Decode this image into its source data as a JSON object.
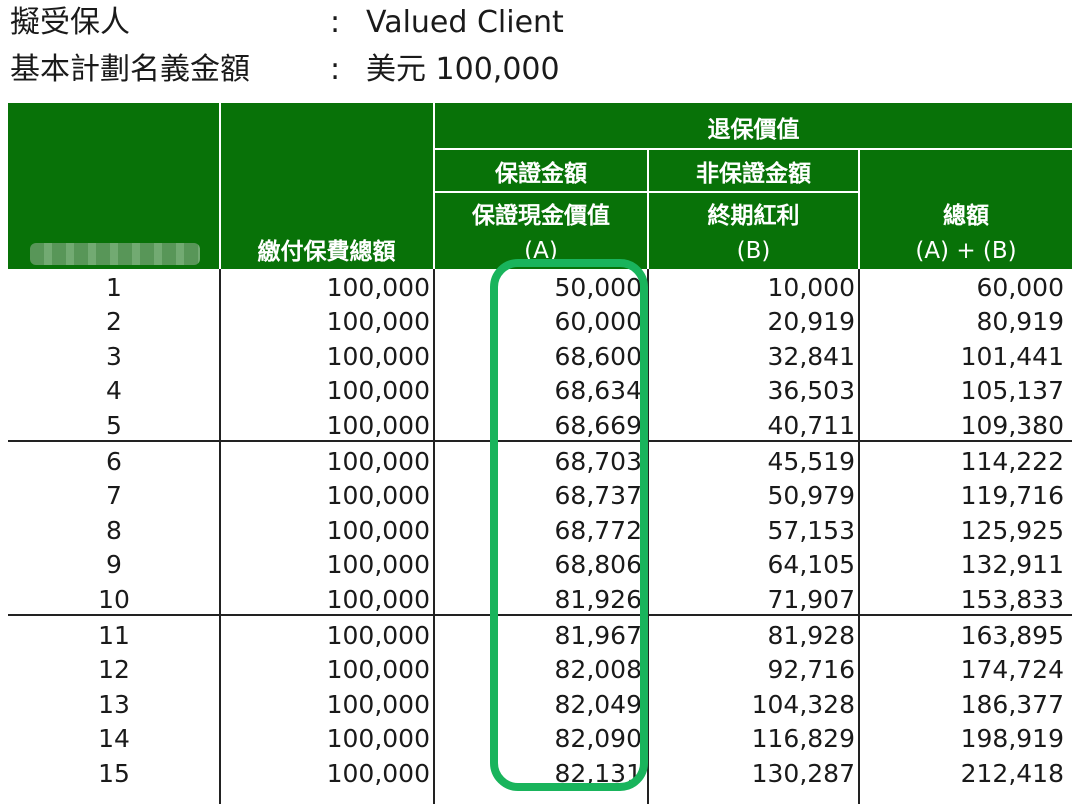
{
  "header": {
    "insured_label": "擬受保人",
    "insured_sep": ":",
    "insured_value": "Valued Client",
    "amount_label": "基本計劃名義金額",
    "amount_sep": ":",
    "amount_value": "美元 100,000"
  },
  "table": {
    "col_premium": "繳付保費總額",
    "group_surrender": "退保價值",
    "guaranteed_label": "保證金額",
    "non_guaranteed_label": "非保證金額",
    "col_a_title": "保證現金價值",
    "col_a_tag": "(A)",
    "col_b_title": "終期紅利",
    "col_b_tag": "(B)",
    "col_total_title": "總額",
    "col_total_tag": "(A) + (B)",
    "rows": [
      {
        "year": "1",
        "premium": "100,000",
        "a": "50,000",
        "b": "10,000",
        "total": "60,000"
      },
      {
        "year": "2",
        "premium": "100,000",
        "a": "60,000",
        "b": "20,919",
        "total": "80,919"
      },
      {
        "year": "3",
        "premium": "100,000",
        "a": "68,600",
        "b": "32,841",
        "total": "101,441"
      },
      {
        "year": "4",
        "premium": "100,000",
        "a": "68,634",
        "b": "36,503",
        "total": "105,137"
      },
      {
        "year": "5",
        "premium": "100,000",
        "a": "68,669",
        "b": "40,711",
        "total": "109,380"
      },
      {
        "year": "6",
        "premium": "100,000",
        "a": "68,703",
        "b": "45,519",
        "total": "114,222"
      },
      {
        "year": "7",
        "premium": "100,000",
        "a": "68,737",
        "b": "50,979",
        "total": "119,716"
      },
      {
        "year": "8",
        "premium": "100,000",
        "a": "68,772",
        "b": "57,153",
        "total": "125,925"
      },
      {
        "year": "9",
        "premium": "100,000",
        "a": "68,806",
        "b": "64,105",
        "total": "132,911"
      },
      {
        "year": "10",
        "premium": "100,000",
        "a": "81,926",
        "b": "71,907",
        "total": "153,833"
      },
      {
        "year": "11",
        "premium": "100,000",
        "a": "81,967",
        "b": "81,928",
        "total": "163,895"
      },
      {
        "year": "12",
        "premium": "100,000",
        "a": "82,008",
        "b": "92,716",
        "total": "174,724"
      },
      {
        "year": "13",
        "premium": "100,000",
        "a": "82,049",
        "b": "104,328",
        "total": "186,377"
      },
      {
        "year": "14",
        "premium": "100,000",
        "a": "82,090",
        "b": "116,829",
        "total": "198,919"
      },
      {
        "year": "15",
        "premium": "100,000",
        "a": "82,131",
        "b": "130,287",
        "total": "212,418"
      }
    ]
  },
  "colors": {
    "header_green": "#087208",
    "highlight_green": "#19b45c"
  }
}
